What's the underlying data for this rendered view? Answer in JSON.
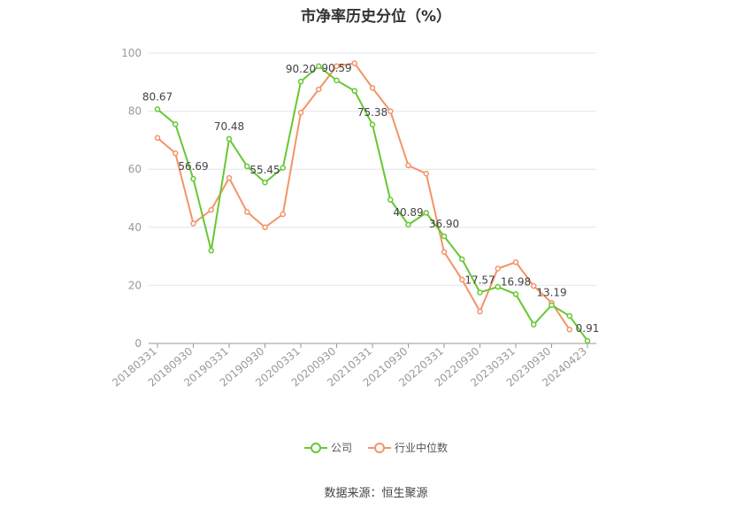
{
  "chart_data": {
    "type": "line",
    "title": "市净率历史分位（%）",
    "ylim": [
      0,
      100
    ],
    "yticks": [
      0,
      20,
      40,
      60,
      80,
      100
    ],
    "x": [
      "20180331",
      "20180630",
      "20180930",
      "20181231",
      "20190331",
      "20190630",
      "20190930",
      "20191231",
      "20200331",
      "20200630",
      "20200930",
      "20201231",
      "20210331",
      "20210630",
      "20210930",
      "20211231",
      "20220331",
      "20220630",
      "20220930",
      "20221231",
      "20230331",
      "20230630",
      "20230930",
      "20231231",
      "20240423"
    ],
    "xtick_labels": [
      "20180331",
      "20180930",
      "20190331",
      "20190930",
      "20200331",
      "20200930",
      "20210331",
      "20210930",
      "20220331",
      "20220930",
      "20230331",
      "20230930",
      "20240423"
    ],
    "grid": true,
    "legend_position": "bottom",
    "series": [
      {
        "name": "公司",
        "color": "#66c832",
        "values": [
          80.67,
          75.5,
          56.69,
          32.0,
          70.48,
          61.0,
          55.45,
          60.5,
          90.2,
          95.5,
          90.59,
          87.0,
          75.38,
          49.5,
          40.89,
          45.0,
          36.9,
          29.0,
          17.57,
          19.5,
          16.98,
          6.5,
          13.19,
          9.5,
          0.91
        ],
        "labels": {
          "0": "80.67",
          "2": "56.69",
          "4": "70.48",
          "6": "55.45",
          "8": "90.20",
          "10": "90.59",
          "12": "75.38",
          "14": "40.89",
          "16": "36.90",
          "18": "17.57",
          "20": "16.98",
          "22": "13.19",
          "24": "0.91"
        }
      },
      {
        "name": "行业中位数",
        "color": "#f39467",
        "values": [
          70.8,
          65.5,
          41.3,
          46.0,
          57.0,
          45.3,
          40.0,
          44.5,
          79.5,
          87.5,
          95.5,
          96.5,
          88.0,
          80.0,
          61.3,
          58.5,
          31.5,
          22.0,
          11.0,
          25.8,
          28.0,
          19.8,
          14.0,
          4.8,
          null
        ]
      }
    ]
  },
  "source": "数据来源：恒生聚源"
}
